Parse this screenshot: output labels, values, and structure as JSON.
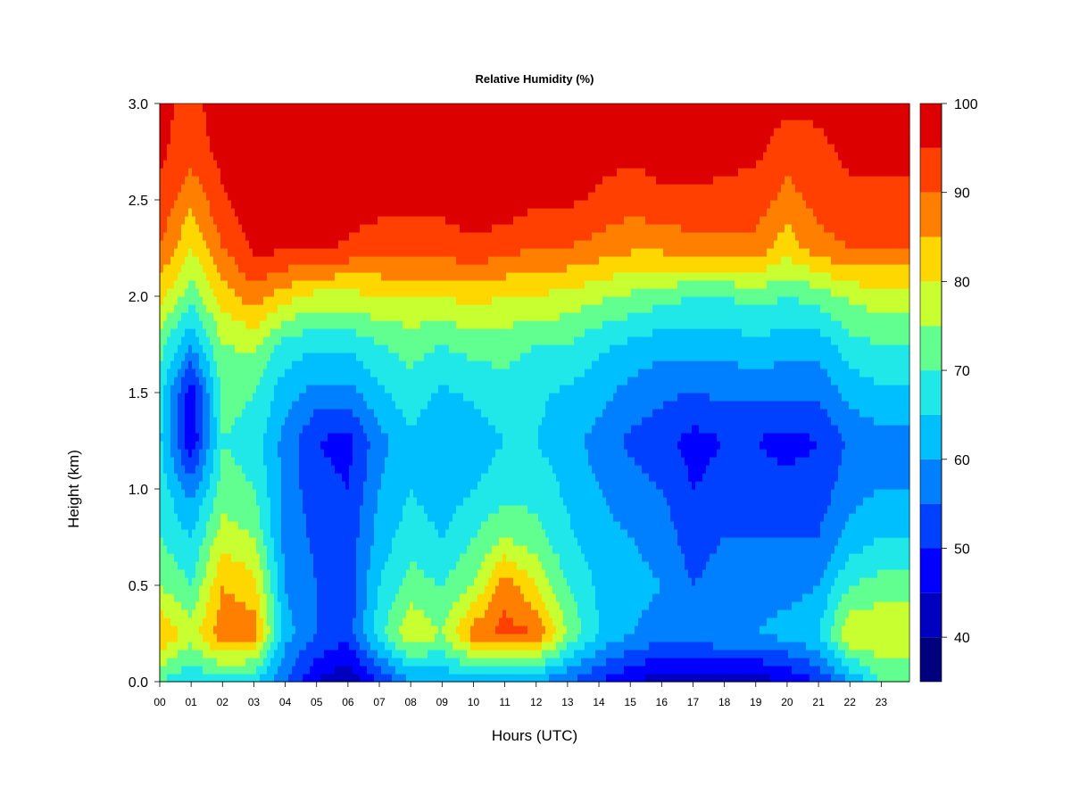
{
  "chart_data": {
    "type": "heatmap",
    "title": "Relative Humidity (%)",
    "xlabel": "Hours (UTC)",
    "ylabel": "Height (km)",
    "x_ticks": [
      "00",
      "01",
      "02",
      "03",
      "04",
      "05",
      "06",
      "07",
      "08",
      "09",
      "10",
      "11",
      "12",
      "13",
      "14",
      "15",
      "16",
      "17",
      "18",
      "19",
      "20",
      "21",
      "22",
      "23"
    ],
    "y_ticks": [
      "0.0",
      "0.5",
      "1.0",
      "1.5",
      "2.0",
      "2.5",
      "3.0"
    ],
    "xlim": [
      0,
      23.9
    ],
    "ylim": [
      0,
      3.0
    ],
    "colorbar": {
      "ticks": [
        "40",
        "50",
        "60",
        "70",
        "80",
        "90",
        "100"
      ],
      "range": [
        35,
        100
      ],
      "levels": [
        35,
        40,
        45,
        50,
        55,
        60,
        65,
        70,
        75,
        80,
        85,
        90,
        95,
        100
      ],
      "colors": [
        "#00007F",
        "#0000BF",
        "#0000FF",
        "#0040FF",
        "#0080FF",
        "#00BFFF",
        "#20E8E8",
        "#60FF90",
        "#C8FF30",
        "#FFD700",
        "#FF8000",
        "#FF4000",
        "#DD0000",
        "#800000"
      ]
    },
    "z_units": "%",
    "rows": [
      {
        "height": 0.0,
        "values": [
          70,
          65,
          68,
          65,
          55,
          45,
          40,
          50,
          60,
          60,
          62,
          62,
          60,
          55,
          50,
          45,
          42,
          42,
          42,
          42,
          45,
          50,
          60,
          70
        ]
      },
      {
        "height": 0.25,
        "values": [
          85,
          78,
          88,
          88,
          62,
          55,
          52,
          68,
          80,
          75,
          88,
          92,
          90,
          75,
          65,
          60,
          58,
          58,
          60,
          60,
          62,
          65,
          80,
          80
        ]
      },
      {
        "height": 0.5,
        "values": [
          75,
          70,
          85,
          82,
          60,
          55,
          52,
          65,
          72,
          70,
          75,
          88,
          80,
          70,
          64,
          62,
          60,
          55,
          58,
          58,
          58,
          60,
          70,
          72
        ]
      },
      {
        "height": 0.75,
        "values": [
          70,
          65,
          78,
          75,
          58,
          54,
          52,
          62,
          68,
          65,
          70,
          75,
          72,
          66,
          62,
          60,
          58,
          52,
          55,
          55,
          55,
          55,
          62,
          65
        ]
      },
      {
        "height": 1.0,
        "values": [
          68,
          58,
          72,
          70,
          58,
          52,
          50,
          60,
          65,
          62,
          65,
          68,
          68,
          64,
          60,
          57,
          55,
          50,
          52,
          52,
          52,
          52,
          58,
          60
        ]
      },
      {
        "height": 1.25,
        "values": [
          66,
          45,
          70,
          68,
          58,
          50,
          48,
          58,
          64,
          60,
          62,
          65,
          65,
          62,
          58,
          54,
          52,
          48,
          50,
          50,
          48,
          50,
          56,
          58
        ]
      },
      {
        "height": 1.5,
        "values": [
          68,
          46,
          72,
          70,
          62,
          58,
          58,
          64,
          68,
          64,
          66,
          68,
          66,
          64,
          62,
          58,
          56,
          55,
          56,
          56,
          56,
          56,
          62,
          64
        ]
      },
      {
        "height": 1.75,
        "values": [
          72,
          60,
          75,
          76,
          68,
          66,
          66,
          70,
          72,
          70,
          72,
          72,
          70,
          70,
          66,
          64,
          62,
          62,
          62,
          64,
          62,
          62,
          68,
          70
        ]
      },
      {
        "height": 2.0,
        "values": [
          82,
          72,
          82,
          88,
          82,
          78,
          78,
          80,
          80,
          80,
          82,
          80,
          80,
          78,
          76,
          74,
          72,
          70,
          70,
          72,
          70,
          72,
          76,
          78
        ]
      },
      {
        "height": 2.25,
        "values": [
          90,
          80,
          90,
          96,
          96,
          96,
          94,
          92,
          92,
          92,
          94,
          92,
          90,
          90,
          88,
          86,
          86,
          88,
          88,
          88,
          82,
          88,
          90,
          90
        ]
      },
      {
        "height": 2.5,
        "values": [
          94,
          86,
          94,
          98,
          98,
          98,
          98,
          97,
          97,
          97,
          98,
          98,
          96,
          96,
          94,
          92,
          94,
          94,
          94,
          93,
          88,
          92,
          94,
          94
        ]
      },
      {
        "height": 2.75,
        "values": [
          96,
          92,
          97,
          98,
          98,
          98,
          98,
          98,
          98,
          98,
          98,
          98,
          98,
          98,
          97,
          96,
          97,
          97,
          96,
          96,
          92,
          94,
          96,
          96
        ]
      },
      {
        "height": 3.0,
        "values": [
          96,
          94,
          97,
          98,
          98,
          98,
          98,
          98,
          98,
          98,
          98,
          98,
          98,
          98,
          98,
          98,
          98,
          98,
          98,
          98,
          96,
          96,
          96,
          96
        ]
      }
    ]
  }
}
